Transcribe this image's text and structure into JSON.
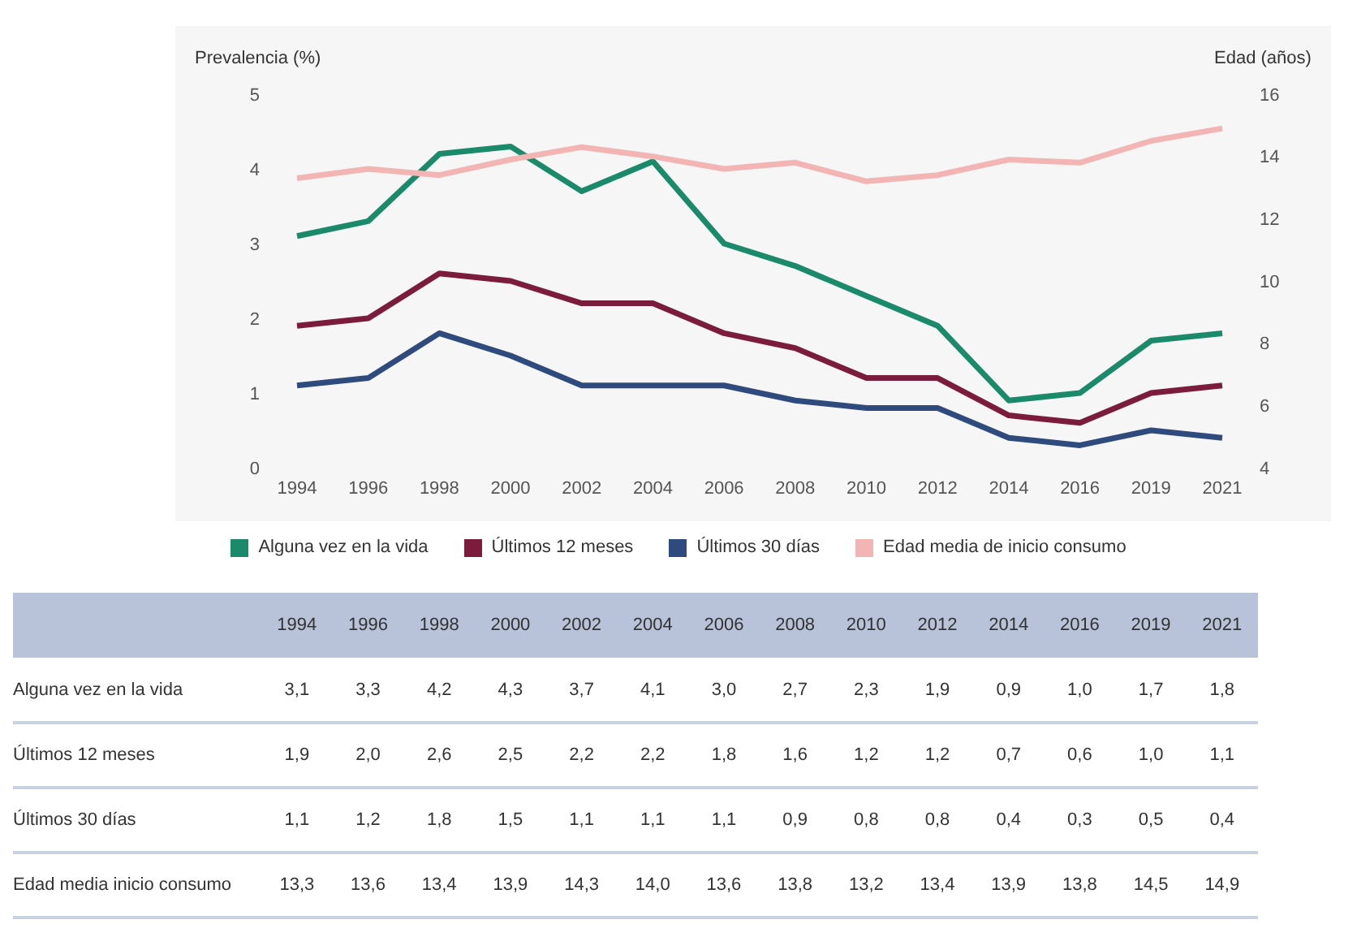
{
  "chart_data": {
    "type": "line",
    "categories": [
      "1994",
      "1996",
      "1998",
      "2000",
      "2002",
      "2004",
      "2006",
      "2008",
      "2010",
      "2012",
      "2014",
      "2016",
      "2019",
      "2021"
    ],
    "ylabel": "Prevalencia (%)",
    "y2label": "Edad (años)",
    "ylim": [
      0,
      5
    ],
    "yticks": [
      0,
      1,
      2,
      3,
      4,
      5
    ],
    "y2lim": [
      4,
      16
    ],
    "y2ticks": [
      4,
      6,
      8,
      10,
      12,
      14,
      16
    ],
    "series": [
      {
        "name": "Alguna vez en la vida",
        "color": "#1b8a6b",
        "values": [
          3.1,
          3.3,
          4.2,
          4.3,
          3.7,
          4.1,
          3.0,
          2.7,
          2.3,
          1.9,
          0.9,
          1.0,
          1.7,
          1.8
        ],
        "value_labels": [
          "3,1",
          "3,3",
          "4,2",
          "4,3",
          "3,7",
          "4,1",
          "3,0",
          "2,7",
          "2,3",
          "1,9",
          "0,9",
          "1,0",
          "1,7",
          "1,8"
        ]
      },
      {
        "name": "Últimos 12 meses",
        "color": "#7b1c3c",
        "values": [
          1.9,
          2.0,
          2.6,
          2.5,
          2.2,
          2.2,
          1.8,
          1.6,
          1.2,
          1.2,
          0.7,
          0.6,
          1.0,
          1.1
        ],
        "value_labels": [
          "1,9",
          "2,0",
          "2,6",
          "2,5",
          "2,2",
          "2,2",
          "1,8",
          "1,6",
          "1,2",
          "1,2",
          "0,7",
          "0,6",
          "1,0",
          "1,1"
        ]
      },
      {
        "name": "Últimos 30 días",
        "color": "#2f4a7c",
        "values": [
          1.1,
          1.2,
          1.8,
          1.5,
          1.1,
          1.1,
          1.1,
          0.9,
          0.8,
          0.8,
          0.4,
          0.3,
          0.5,
          0.4
        ],
        "value_labels": [
          "1,1",
          "1,2",
          "1,8",
          "1,5",
          "1,1",
          "1,1",
          "1,1",
          "0,9",
          "0,8",
          "0,8",
          "0,4",
          "0,3",
          "0,5",
          "0,4"
        ]
      },
      {
        "name": "Edad media de inicio consumo",
        "color": "#f2b5b3",
        "axis": "y2",
        "values": [
          13.3,
          13.6,
          13.4,
          13.9,
          14.3,
          14.0,
          13.6,
          13.8,
          13.2,
          13.4,
          13.9,
          13.8,
          14.5,
          14.9
        ],
        "value_labels": [
          "13,3",
          "13,6",
          "13,4",
          "13,9",
          "14,3",
          "14,0",
          "13,6",
          "13,8",
          "13,2",
          "13,4",
          "13,9",
          "13,8",
          "14,5",
          "14,9"
        ]
      }
    ],
    "annotations": [
      "Alguna vez en la vida",
      "Últimos 12 meses",
      "Últimos 30 días",
      "Edad media inicio consumo"
    ],
    "legend": "bottom",
    "grid": false,
    "marker": "none",
    "line_style": "solid"
  }
}
